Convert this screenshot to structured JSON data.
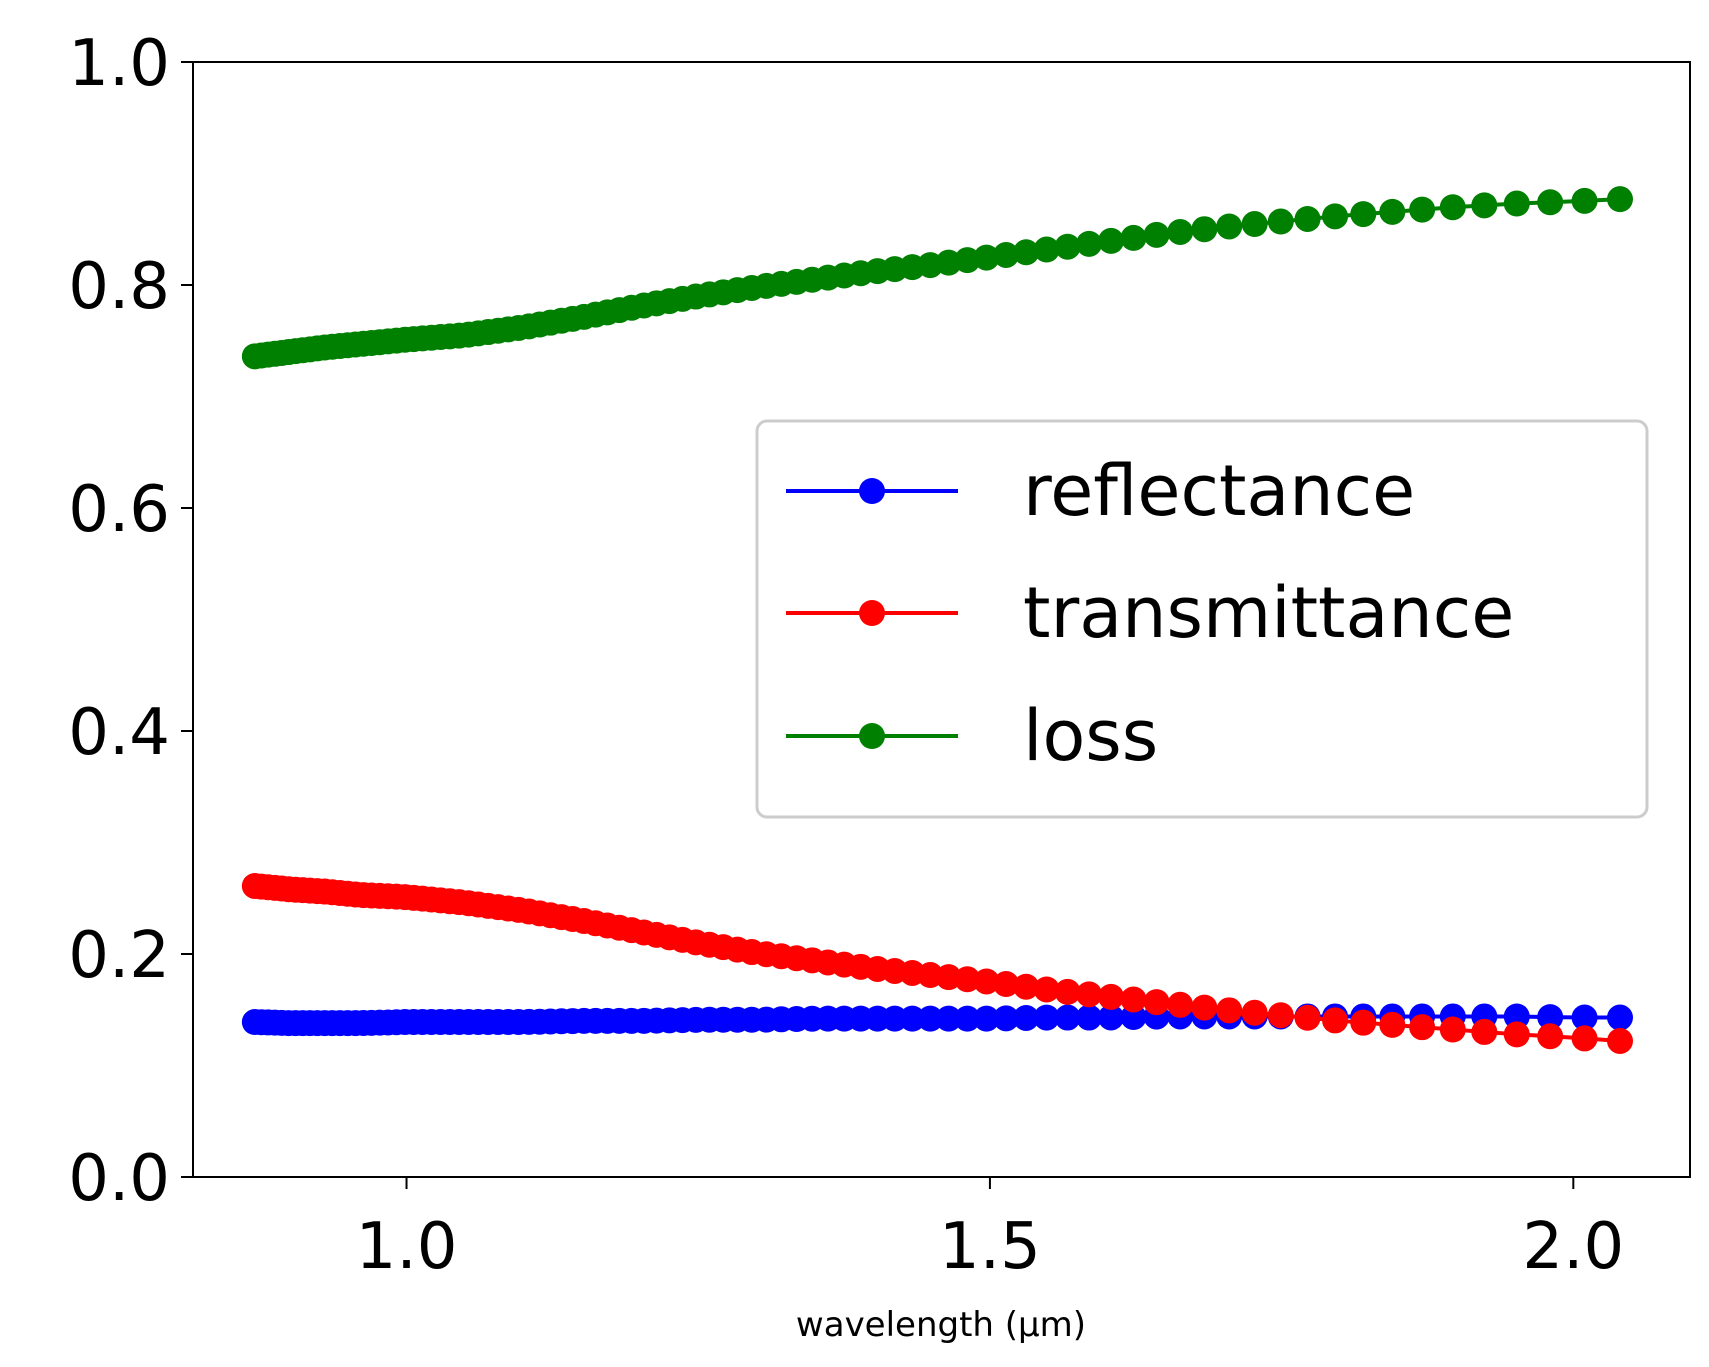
{
  "chart_data": {
    "type": "scatter",
    "xlabel": "wavelength (µm)",
    "ylabel": "",
    "title": "",
    "xlim": [
      0.817,
      2.1
    ],
    "ylim": [
      0.0,
      1.0
    ],
    "x_ticks": [
      {
        "value": 1.0,
        "label": "1.0"
      },
      {
        "value": 1.5,
        "label": "1.5"
      },
      {
        "value": 2.0,
        "label": "2.0"
      }
    ],
    "y_ticks": [
      {
        "value": 0.0,
        "label": "0.0"
      },
      {
        "value": 0.2,
        "label": "0.2"
      },
      {
        "value": 0.4,
        "label": "0.4"
      },
      {
        "value": 0.6,
        "label": "0.6"
      },
      {
        "value": 0.8,
        "label": "0.8"
      },
      {
        "value": 1.0,
        "label": "1.0"
      }
    ],
    "grid": false,
    "legend_position": "center-right",
    "marker": "circle with line",
    "x": [
      0.87,
      0.9,
      0.93,
      0.96,
      1.0,
      1.05,
      1.1,
      1.15,
      1.2,
      1.25,
      1.3,
      1.35,
      1.4,
      1.45,
      1.5,
      1.55,
      1.6,
      1.65,
      1.7,
      1.75,
      1.8,
      1.85,
      1.9,
      1.95,
      2.0,
      2.04
    ],
    "series": [
      {
        "name": "reflectance",
        "color": "#0000ff",
        "values": [
          0.139,
          0.138,
          0.138,
          0.138,
          0.139,
          0.139,
          0.139,
          0.14,
          0.14,
          0.141,
          0.141,
          0.142,
          0.142,
          0.142,
          0.142,
          0.143,
          0.143,
          0.144,
          0.144,
          0.144,
          0.144,
          0.144,
          0.144,
          0.144,
          0.143,
          0.143
        ]
      },
      {
        "name": "transmittance",
        "color": "#ff0000",
        "values": [
          0.261,
          0.258,
          0.256,
          0.253,
          0.251,
          0.246,
          0.239,
          0.23,
          0.22,
          0.21,
          0.201,
          0.194,
          0.187,
          0.181,
          0.175,
          0.168,
          0.162,
          0.156,
          0.15,
          0.145,
          0.14,
          0.136,
          0.132,
          0.128,
          0.125,
          0.122
        ]
      },
      {
        "name": "loss",
        "color": "#008000",
        "values": [
          0.736,
          0.74,
          0.744,
          0.747,
          0.751,
          0.755,
          0.762,
          0.771,
          0.781,
          0.79,
          0.798,
          0.805,
          0.812,
          0.818,
          0.825,
          0.832,
          0.839,
          0.846,
          0.852,
          0.857,
          0.862,
          0.866,
          0.87,
          0.873,
          0.875,
          0.877
        ]
      }
    ]
  }
}
